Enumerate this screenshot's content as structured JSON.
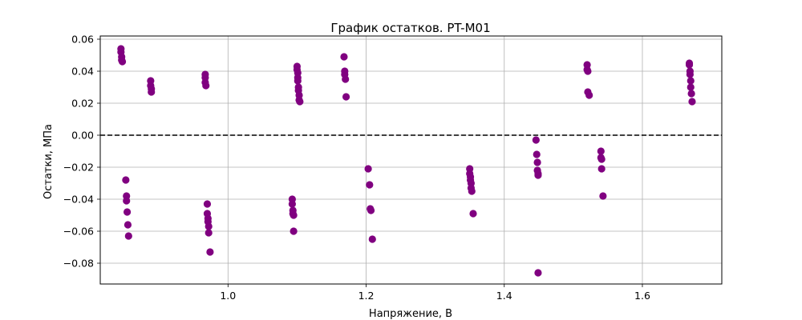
{
  "chart_data": {
    "type": "scatter",
    "title": "График остатков. PT-M01",
    "xlabel": "Напряжение, В",
    "ylabel": "Остатки, МПа",
    "xlim": [
      0.815,
      1.715
    ],
    "ylim": [
      -0.093,
      0.062
    ],
    "xticks": [
      1.0,
      1.2,
      1.4,
      1.6
    ],
    "xtick_labels": [
      "1.0",
      "1.2",
      "1.4",
      "1.6"
    ],
    "yticks": [
      -0.08,
      -0.06,
      -0.04,
      -0.02,
      0.0,
      0.02,
      0.04,
      0.06
    ],
    "ytick_labels": [
      "−0.08",
      "−0.06",
      "−0.04",
      "−0.02",
      "0.00",
      "0.02",
      "0.04",
      "0.06"
    ],
    "grid": true,
    "reference_line_y": 0.0,
    "marker_color": "#800080",
    "reference_line_color": "#000000",
    "points": [
      {
        "x": 0.845,
        "y": 0.054
      },
      {
        "x": 0.845,
        "y": 0.052
      },
      {
        "x": 0.846,
        "y": 0.049
      },
      {
        "x": 0.846,
        "y": 0.047
      },
      {
        "x": 0.847,
        "y": 0.046
      },
      {
        "x": 0.852,
        "y": -0.028
      },
      {
        "x": 0.853,
        "y": -0.038
      },
      {
        "x": 0.853,
        "y": -0.041
      },
      {
        "x": 0.854,
        "y": -0.048
      },
      {
        "x": 0.855,
        "y": -0.056
      },
      {
        "x": 0.856,
        "y": -0.063
      },
      {
        "x": 0.888,
        "y": 0.034
      },
      {
        "x": 0.888,
        "y": 0.031
      },
      {
        "x": 0.889,
        "y": 0.029
      },
      {
        "x": 0.889,
        "y": 0.027
      },
      {
        "x": 0.967,
        "y": 0.038
      },
      {
        "x": 0.967,
        "y": 0.036
      },
      {
        "x": 0.967,
        "y": 0.033
      },
      {
        "x": 0.968,
        "y": 0.031
      },
      {
        "x": 0.97,
        "y": -0.043
      },
      {
        "x": 0.97,
        "y": -0.049
      },
      {
        "x": 0.971,
        "y": -0.052
      },
      {
        "x": 0.971,
        "y": -0.054
      },
      {
        "x": 0.972,
        "y": -0.057
      },
      {
        "x": 0.972,
        "y": -0.061
      },
      {
        "x": 0.974,
        "y": -0.073
      },
      {
        "x": 1.093,
        "y": -0.04
      },
      {
        "x": 1.093,
        "y": -0.043
      },
      {
        "x": 1.094,
        "y": -0.047
      },
      {
        "x": 1.094,
        "y": -0.049
      },
      {
        "x": 1.095,
        "y": -0.05
      },
      {
        "x": 1.095,
        "y": -0.06
      },
      {
        "x": 1.1,
        "y": 0.043
      },
      {
        "x": 1.1,
        "y": 0.041
      },
      {
        "x": 1.101,
        "y": 0.039
      },
      {
        "x": 1.101,
        "y": 0.036
      },
      {
        "x": 1.101,
        "y": 0.034
      },
      {
        "x": 1.102,
        "y": 0.03
      },
      {
        "x": 1.102,
        "y": 0.028
      },
      {
        "x": 1.103,
        "y": 0.025
      },
      {
        "x": 1.103,
        "y": 0.022
      },
      {
        "x": 1.104,
        "y": 0.021
      },
      {
        "x": 1.168,
        "y": 0.049
      },
      {
        "x": 1.169,
        "y": 0.04
      },
      {
        "x": 1.169,
        "y": 0.038
      },
      {
        "x": 1.17,
        "y": 0.035
      },
      {
        "x": 1.171,
        "y": 0.024
      },
      {
        "x": 1.203,
        "y": -0.021
      },
      {
        "x": 1.205,
        "y": -0.031
      },
      {
        "x": 1.206,
        "y": -0.046
      },
      {
        "x": 1.207,
        "y": -0.047
      },
      {
        "x": 1.209,
        "y": -0.065
      },
      {
        "x": 1.35,
        "y": -0.021
      },
      {
        "x": 1.35,
        "y": -0.024
      },
      {
        "x": 1.351,
        "y": -0.026
      },
      {
        "x": 1.351,
        "y": -0.028
      },
      {
        "x": 1.352,
        "y": -0.03
      },
      {
        "x": 1.352,
        "y": -0.033
      },
      {
        "x": 1.353,
        "y": -0.035
      },
      {
        "x": 1.355,
        "y": -0.049
      },
      {
        "x": 1.446,
        "y": -0.003
      },
      {
        "x": 1.447,
        "y": -0.012
      },
      {
        "x": 1.448,
        "y": -0.017
      },
      {
        "x": 1.448,
        "y": -0.022
      },
      {
        "x": 1.449,
        "y": -0.024
      },
      {
        "x": 1.449,
        "y": -0.025
      },
      {
        "x": 1.449,
        "y": -0.086
      },
      {
        "x": 1.52,
        "y": 0.044
      },
      {
        "x": 1.52,
        "y": 0.041
      },
      {
        "x": 1.521,
        "y": 0.04
      },
      {
        "x": 1.521,
        "y": 0.027
      },
      {
        "x": 1.523,
        "y": 0.025
      },
      {
        "x": 1.54,
        "y": -0.01
      },
      {
        "x": 1.54,
        "y": -0.014
      },
      {
        "x": 1.541,
        "y": -0.015
      },
      {
        "x": 1.541,
        "y": -0.021
      },
      {
        "x": 1.543,
        "y": -0.038
      },
      {
        "x": 1.668,
        "y": 0.045
      },
      {
        "x": 1.668,
        "y": 0.044
      },
      {
        "x": 1.669,
        "y": 0.04
      },
      {
        "x": 1.669,
        "y": 0.038
      },
      {
        "x": 1.67,
        "y": 0.034
      },
      {
        "x": 1.67,
        "y": 0.03
      },
      {
        "x": 1.671,
        "y": 0.026
      },
      {
        "x": 1.672,
        "y": 0.021
      }
    ]
  }
}
